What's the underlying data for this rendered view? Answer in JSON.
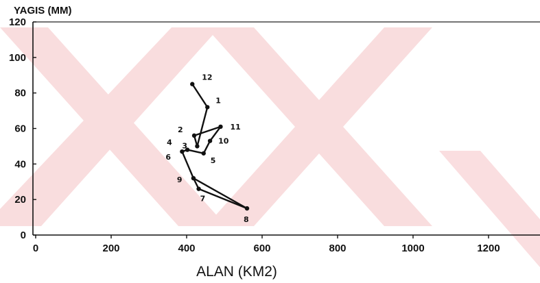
{
  "chart_data": {
    "type": "line",
    "title": "",
    "xlabel": "ALAN (KM2)",
    "ylabel": "YAGIS (MM)",
    "xlim": [
      0,
      1300
    ],
    "ylim": [
      0,
      120
    ],
    "x_ticks": [
      "0",
      "200",
      "400",
      "600",
      "800",
      "1000",
      "1200"
    ],
    "y_ticks": [
      "0",
      "20",
      "40",
      "60",
      "80",
      "100",
      "120"
    ],
    "grid": false,
    "series": [
      {
        "points": [
          {
            "label": "12",
            "x": 415,
            "y": 85
          },
          {
            "label": "1",
            "x": 455,
            "y": 72
          },
          {
            "label": "11",
            "x": 490,
            "y": 61
          },
          {
            "label": "10",
            "x": 462,
            "y": 53
          },
          {
            "label": "5",
            "x": 445,
            "y": 46
          },
          {
            "label": "4",
            "x": 402,
            "y": 48
          },
          {
            "label": "3",
            "x": 428,
            "y": 50
          },
          {
            "label": "2",
            "x": 420,
            "y": 56
          },
          {
            "label": "6",
            "x": 388,
            "y": 47
          },
          {
            "label": "9",
            "x": 418,
            "y": 32
          },
          {
            "label": "7",
            "x": 432,
            "y": 26
          },
          {
            "label": "8",
            "x": 560,
            "y": 15
          }
        ]
      }
    ],
    "segments": [
      [
        0,
        1
      ],
      [
        1,
        6
      ],
      [
        6,
        7
      ],
      [
        7,
        2
      ],
      [
        2,
        3
      ],
      [
        3,
        4
      ],
      [
        4,
        5
      ],
      [
        5,
        8
      ],
      [
        8,
        9
      ],
      [
        9,
        11
      ],
      [
        11,
        10
      ],
      [
        10,
        9
      ]
    ]
  }
}
